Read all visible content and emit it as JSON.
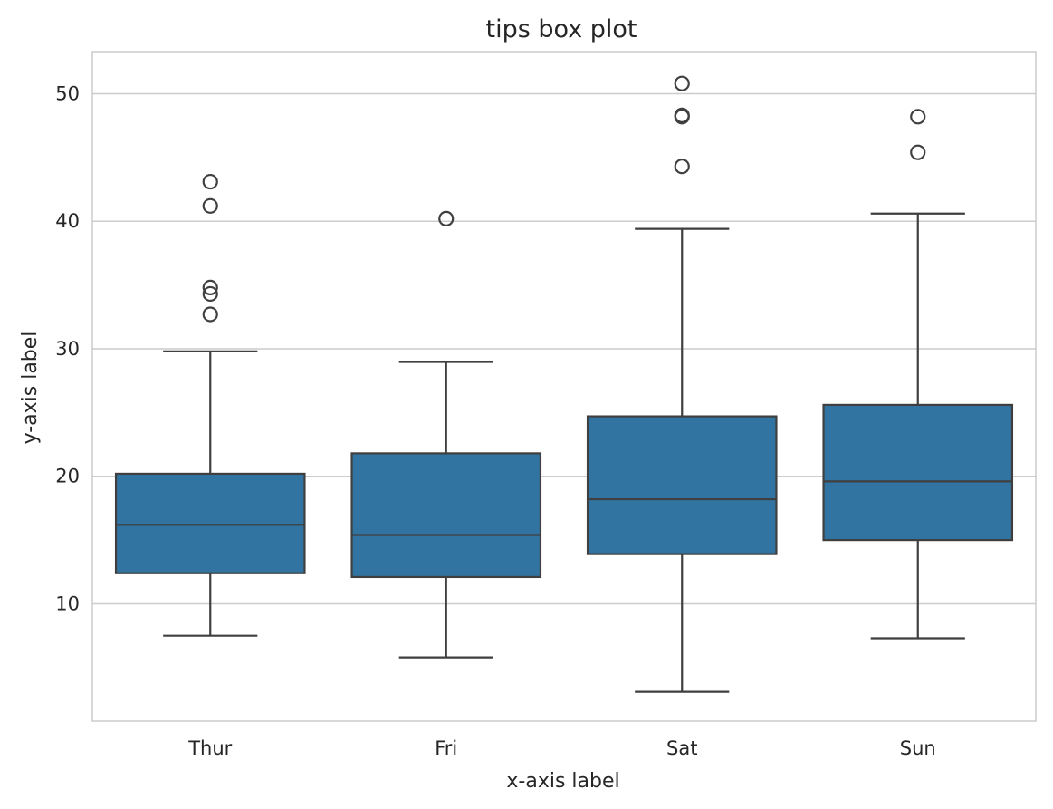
{
  "chart_data": {
    "type": "box",
    "title": "tips box plot",
    "xlabel": "x-axis label",
    "ylabel": "y-axis label",
    "ylim": [
      0.8,
      53.3
    ],
    "yticks": [
      10,
      20,
      30,
      40,
      50
    ],
    "grid": "horizontal",
    "colors": {
      "box": "#3274a1",
      "line": "#3f3f3f",
      "grid": "#cccccc",
      "spine": "#cccccc"
    },
    "categories": [
      "Thur",
      "Fri",
      "Sat",
      "Sun"
    ],
    "boxes": [
      {
        "category": "Thur",
        "whisker_low": 7.5,
        "q1": 12.4,
        "median": 16.2,
        "q3": 20.2,
        "whisker_high": 29.8,
        "outliers": [
          32.7,
          34.3,
          34.8,
          41.2,
          43.1
        ]
      },
      {
        "category": "Fri",
        "whisker_low": 5.8,
        "q1": 12.1,
        "median": 15.4,
        "q3": 21.8,
        "whisker_high": 28.97,
        "outliers": [
          40.2
        ]
      },
      {
        "category": "Sat",
        "whisker_low": 3.1,
        "q1": 13.9,
        "median": 18.2,
        "q3": 24.7,
        "whisker_high": 39.4,
        "outliers": [
          44.3,
          48.2,
          48.3,
          50.8
        ]
      },
      {
        "category": "Sun",
        "whisker_low": 7.3,
        "q1": 15.0,
        "median": 19.6,
        "q3": 25.6,
        "whisker_high": 40.6,
        "outliers": [
          45.4,
          48.2
        ]
      }
    ]
  }
}
